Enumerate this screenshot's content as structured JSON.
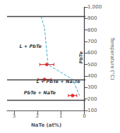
{
  "chart_data": {
    "type": "scatter",
    "title": "",
    "xlabel": "NaTe (at%)",
    "ylabel": "Temperature (°C)",
    "xlim": [
      3.3,
      -0.05
    ],
    "xticks": [
      3,
      2,
      1,
      0
    ],
    "ylim": [
      100,
      1000
    ],
    "yticks": [
      100,
      200,
      300,
      400,
      500,
      600,
      700,
      800,
      900,
      1000
    ],
    "grid": false,
    "series": [
      {
        "type": "hline",
        "values": [
          920,
          370,
          190
        ],
        "color": "#444444"
      },
      {
        "type": "vline",
        "x": [
          0
        ],
        "color": "#444444"
      },
      {
        "type": "line",
        "line_style": "dashed",
        "color": "#44aacc",
        "x": [
          1.85,
          1.7,
          1.55,
          0.5,
          0.2
        ],
        "values": [
          920,
          820,
          500,
          370,
          230
        ]
      },
      {
        "type": "scatter",
        "marker": "circle",
        "color": "#dd1111",
        "x": [
          1.6,
          1.7,
          0.5
        ],
        "values": [
          500,
          370,
          230
        ],
        "xerr": [
          0.3,
          0.28,
          0.18
        ]
      }
    ],
    "annotations": [
      {
        "text": "L + PbTe",
        "x": 2.3,
        "y": 660
      },
      {
        "text": "L + PbTe + Na₂Te",
        "x": 2.05,
        "y": 350
      },
      {
        "text": "PbTe + NaTe",
        "x": 1.9,
        "y": 255
      },
      {
        "text": "PbTe",
        "x": 0.12,
        "y": 560
      }
    ]
  }
}
